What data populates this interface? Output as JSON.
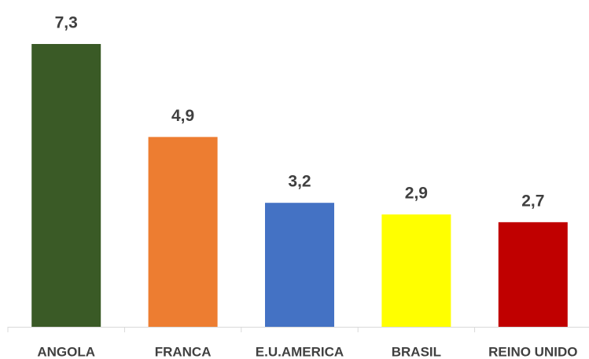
{
  "chart_data": {
    "type": "bar",
    "categories": [
      "ANGOLA",
      "FRANCA",
      "E.U.AMERICA",
      "BRASIL",
      "REINO UNIDO"
    ],
    "values": [
      7.3,
      4.9,
      3.2,
      2.9,
      2.7
    ],
    "value_labels": [
      "7,3",
      "4,9",
      "3,2",
      "2,9",
      "2,7"
    ],
    "colors": [
      "#3a5a26",
      "#ed7d31",
      "#4472c4",
      "#ffff00",
      "#c00000"
    ]
  }
}
